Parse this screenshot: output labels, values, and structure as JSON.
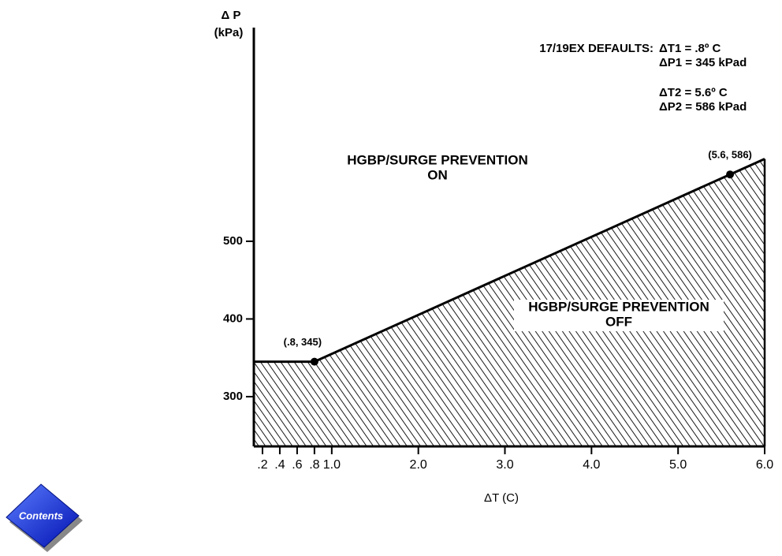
{
  "chart_data": {
    "type": "area",
    "y_label": [
      "Δ P",
      "(kPa)"
    ],
    "x_label": "ΔT (C)",
    "x": [
      0.1,
      0.8,
      5.6,
      6.0
    ],
    "values": [
      345,
      345,
      586,
      606
    ],
    "color": "#000000",
    "xlim": [
      0.1,
      6.0
    ],
    "xticks": [
      {
        "value": 0.2,
        "label": ".2"
      },
      {
        "value": 0.4,
        "label": ".4"
      },
      {
        "value": 0.6,
        "label": ".6"
      },
      {
        "value": 0.8,
        "label": ".8"
      },
      {
        "value": 1,
        "label": "1.0"
      },
      {
        "value": 2,
        "label": "2.0"
      },
      {
        "value": 3,
        "label": "3.0"
      },
      {
        "value": 4,
        "label": "4.0"
      },
      {
        "value": 5,
        "label": "5.0"
      },
      {
        "value": 6,
        "label": "6.0"
      }
    ],
    "ylim": [
      236,
      775
    ],
    "yticks": [
      300,
      400,
      500
    ],
    "points": [
      {
        "x": 0.8,
        "y": 345,
        "label": "(.8, 345)"
      },
      {
        "x": 5.6,
        "y": 586,
        "label": "(5.6, 586)"
      }
    ],
    "region_on": [
      "HGBP/SURGE PREVENTION",
      "ON"
    ],
    "region_off": [
      "HGBP/SURGE PREVENTION",
      "OFF"
    ],
    "defaults_title": "17/19EX DEFAULTS:",
    "defaults": [
      "ΔT1 = .8º C",
      "ΔP1 = 345 kPad",
      "ΔT2 = 5.6º C",
      "ΔP2 = 586 kPad"
    ]
  },
  "contents_button": "Contents"
}
